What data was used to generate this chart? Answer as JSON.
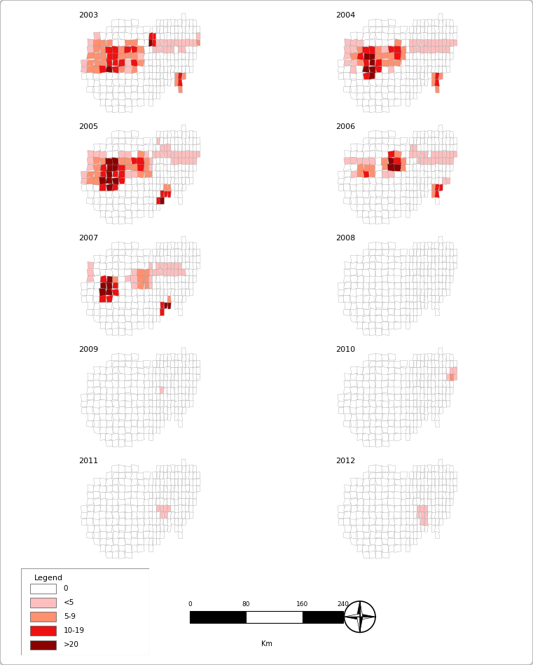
{
  "years": [
    "2003",
    "2004",
    "2005",
    "2006",
    "2007",
    "2008",
    "2009",
    "2010",
    "2011",
    "2012"
  ],
  "legend_labels": [
    "0",
    "<5",
    "5-9",
    "10-19",
    ">20"
  ],
  "legend_colors": [
    "#FFFFFF",
    "#FFBFBF",
    "#FF9070",
    "#EE1111",
    "#8B0000"
  ],
  "cat_colors": [
    "#FFFFFF",
    "#FFBFBF",
    "#FF9070",
    "#EE1111",
    "#8B0000"
  ],
  "scale_ticks": [
    "0",
    "80",
    "160",
    "240"
  ],
  "scale_unit": "Km"
}
